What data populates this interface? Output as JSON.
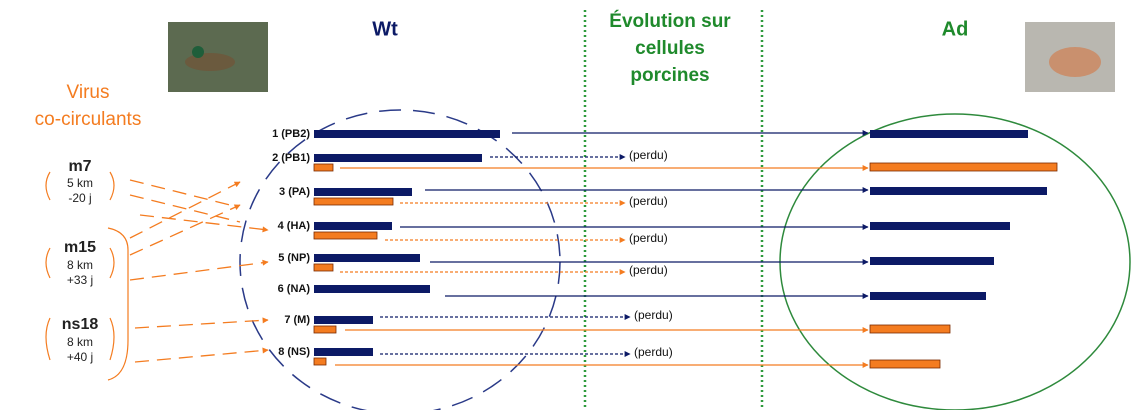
{
  "header": {
    "wt": "Wt",
    "evolution_lines": [
      "Évolution sur",
      "cellules",
      "porcines"
    ],
    "ad": "Ad"
  },
  "left_panel": {
    "title_lines": [
      "Virus",
      "co-circulants"
    ],
    "viruses": [
      {
        "name": "m7",
        "distance": "5 km",
        "delay": "-20 j"
      },
      {
        "name": "m15",
        "distance": "8 km",
        "delay": "+33 j"
      },
      {
        "name": "ns18",
        "distance": "8 km",
        "delay": "+40 j"
      }
    ]
  },
  "segments": [
    {
      "label": "1 (PB2)"
    },
    {
      "label": "2 (PB1)",
      "lost": "(perdu)"
    },
    {
      "label": "3 (PA)",
      "lost": "(perdu)"
    },
    {
      "label": "4 (HA)",
      "lost": "(perdu)"
    },
    {
      "label": "5 (NP)",
      "lost": "(perdu)"
    },
    {
      "label": "6 (NA)"
    },
    {
      "label": "7 (M)",
      "lost": "(perdu)"
    },
    {
      "label": "8 (NS)",
      "lost": "(perdu)"
    }
  ]
}
